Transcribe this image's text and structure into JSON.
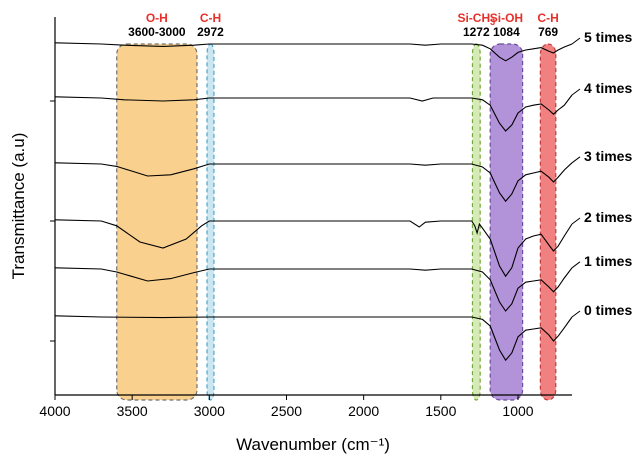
{
  "chart_data": {
    "type": "line",
    "title": "",
    "xlabel": "Wavenumber (cm⁻¹)",
    "ylabel": "Transmittance (a.u)",
    "xlim": [
      4000,
      650
    ],
    "x_reversed": true,
    "x_ticks": [
      4000,
      3500,
      3000,
      2500,
      2000,
      1500,
      1000
    ],
    "x_tick_labels": [
      "4000",
      "3500",
      "3000",
      "2500",
      "2000",
      "1500",
      "1000"
    ],
    "y_ticks_unlabeled": true,
    "bands": [
      {
        "name": "O-H",
        "position": "3600-3000",
        "from": 3600,
        "to": 3080,
        "color": "#f8c87a",
        "border": "#707070"
      },
      {
        "name": "C-H",
        "position": "2972",
        "from": 3015,
        "to": 2970,
        "color": "#bfe2ee",
        "border": "#4aa7c8"
      },
      {
        "name": "Si-CH3",
        "name_main": "Si-CH",
        "name_sub": "3",
        "position": "1272",
        "from": 1295,
        "to": 1245,
        "color": "#cfe6a9",
        "border": "#74a83d"
      },
      {
        "name": "Si-OH",
        "position": "1084",
        "from": 1180,
        "to": 970,
        "color": "#a57fd1",
        "border": "#6a4d9b"
      },
      {
        "name": "C-H",
        "position": "769",
        "from": 855,
        "to": 755,
        "color": "#ef6b6b",
        "border": "#c03a3a"
      }
    ],
    "series": [
      {
        "name": "5 times",
        "offset": 4.95,
        "points": [
          [
            4000,
            0.02
          ],
          [
            3700,
            0
          ],
          [
            3550,
            -0.02
          ],
          [
            3300,
            -0.04
          ],
          [
            3100,
            -0.02
          ],
          [
            3000,
            0
          ],
          [
            2500,
            0
          ],
          [
            2000,
            0
          ],
          [
            1700,
            0
          ],
          [
            1600,
            -0.02
          ],
          [
            1500,
            0
          ],
          [
            1300,
            0
          ],
          [
            1230,
            -0.02
          ],
          [
            1180,
            -0.08
          ],
          [
            1120,
            -0.22
          ],
          [
            1080,
            -0.28
          ],
          [
            1040,
            -0.22
          ],
          [
            1000,
            -0.14
          ],
          [
            950,
            -0.1
          ],
          [
            900,
            -0.08
          ],
          [
            850,
            -0.06
          ],
          [
            800,
            -0.12
          ],
          [
            770,
            -0.15
          ],
          [
            740,
            -0.1
          ],
          [
            700,
            -0.05
          ],
          [
            650,
            0.0
          ]
        ]
      },
      {
        "name": "4 times",
        "offset": 4.05,
        "points": [
          [
            4000,
            0.02
          ],
          [
            3700,
            0
          ],
          [
            3550,
            -0.03
          ],
          [
            3300,
            -0.05
          ],
          [
            3100,
            -0.03
          ],
          [
            3000,
            0
          ],
          [
            2500,
            0
          ],
          [
            2000,
            0
          ],
          [
            1700,
            0
          ],
          [
            1620,
            -0.05
          ],
          [
            1550,
            0
          ],
          [
            1300,
            0
          ],
          [
            1230,
            -0.03
          ],
          [
            1180,
            -0.12
          ],
          [
            1120,
            -0.42
          ],
          [
            1080,
            -0.55
          ],
          [
            1040,
            -0.45
          ],
          [
            1000,
            -0.25
          ],
          [
            950,
            -0.15
          ],
          [
            900,
            -0.12
          ],
          [
            850,
            -0.1
          ],
          [
            800,
            -0.2
          ],
          [
            770,
            -0.27
          ],
          [
            740,
            -0.2
          ],
          [
            700,
            -0.12
          ],
          [
            650,
            0.05
          ]
        ]
      },
      {
        "name": "3 times",
        "offset": 2.95,
        "points": [
          [
            4000,
            0.02
          ],
          [
            3700,
            0
          ],
          [
            3600,
            -0.04
          ],
          [
            3400,
            -0.2
          ],
          [
            3250,
            -0.18
          ],
          [
            3100,
            -0.08
          ],
          [
            3000,
            0
          ],
          [
            2500,
            0
          ],
          [
            2000,
            0
          ],
          [
            1700,
            0
          ],
          [
            1600,
            -0.02
          ],
          [
            1500,
            0
          ],
          [
            1300,
            0
          ],
          [
            1230,
            -0.05
          ],
          [
            1180,
            -0.15
          ],
          [
            1120,
            -0.48
          ],
          [
            1080,
            -0.62
          ],
          [
            1040,
            -0.5
          ],
          [
            1000,
            -0.28
          ],
          [
            950,
            -0.18
          ],
          [
            900,
            -0.15
          ],
          [
            850,
            -0.12
          ],
          [
            800,
            -0.22
          ],
          [
            770,
            -0.3
          ],
          [
            740,
            -0.22
          ],
          [
            700,
            -0.1
          ],
          [
            650,
            0.02
          ]
        ]
      },
      {
        "name": "2 times",
        "offset": 2.0,
        "points": [
          [
            4000,
            0.02
          ],
          [
            3700,
            0
          ],
          [
            3600,
            -0.08
          ],
          [
            3450,
            -0.35
          ],
          [
            3300,
            -0.45
          ],
          [
            3150,
            -0.3
          ],
          [
            3050,
            -0.08
          ],
          [
            3000,
            0
          ],
          [
            2500,
            0
          ],
          [
            2000,
            0
          ],
          [
            1700,
            0
          ],
          [
            1640,
            -0.1
          ],
          [
            1600,
            -0.02
          ],
          [
            1500,
            0
          ],
          [
            1300,
            0
          ],
          [
            1280,
            -0.08
          ],
          [
            1265,
            -0.2
          ],
          [
            1250,
            -0.05
          ],
          [
            1230,
            -0.12
          ],
          [
            1180,
            -0.3
          ],
          [
            1120,
            -0.75
          ],
          [
            1080,
            -0.92
          ],
          [
            1040,
            -0.78
          ],
          [
            1000,
            -0.45
          ],
          [
            950,
            -0.3
          ],
          [
            900,
            -0.25
          ],
          [
            850,
            -0.22
          ],
          [
            800,
            -0.4
          ],
          [
            770,
            -0.5
          ],
          [
            740,
            -0.42
          ],
          [
            700,
            -0.25
          ],
          [
            650,
            -0.05
          ]
        ]
      },
      {
        "name": "1 times",
        "offset": 1.2,
        "points": [
          [
            4000,
            0.02
          ],
          [
            3700,
            0
          ],
          [
            3600,
            -0.05
          ],
          [
            3400,
            -0.2
          ],
          [
            3250,
            -0.16
          ],
          [
            3100,
            -0.06
          ],
          [
            3000,
            0
          ],
          [
            2500,
            0
          ],
          [
            2000,
            0
          ],
          [
            1700,
            0
          ],
          [
            1600,
            -0.02
          ],
          [
            1500,
            0
          ],
          [
            1300,
            0
          ],
          [
            1230,
            -0.05
          ],
          [
            1180,
            -0.18
          ],
          [
            1120,
            -0.55
          ],
          [
            1080,
            -0.7
          ],
          [
            1040,
            -0.58
          ],
          [
            1000,
            -0.32
          ],
          [
            950,
            -0.22
          ],
          [
            900,
            -0.2
          ],
          [
            850,
            -0.18
          ],
          [
            800,
            -0.3
          ],
          [
            770,
            -0.38
          ],
          [
            740,
            -0.3
          ],
          [
            700,
            -0.15
          ],
          [
            650,
            0.02
          ]
        ]
      },
      {
        "name": "0 times",
        "offset": 0.4,
        "points": [
          [
            4000,
            0.02
          ],
          [
            3700,
            0
          ],
          [
            3300,
            -0.01
          ],
          [
            3000,
            0
          ],
          [
            2500,
            0
          ],
          [
            2000,
            0
          ],
          [
            1700,
            0
          ],
          [
            1500,
            0
          ],
          [
            1300,
            0
          ],
          [
            1230,
            -0.04
          ],
          [
            1180,
            -0.15
          ],
          [
            1120,
            -0.55
          ],
          [
            1080,
            -0.72
          ],
          [
            1040,
            -0.6
          ],
          [
            1000,
            -0.33
          ],
          [
            950,
            -0.22
          ],
          [
            900,
            -0.2
          ],
          [
            850,
            -0.18
          ],
          [
            800,
            -0.3
          ],
          [
            770,
            -0.4
          ],
          [
            740,
            -0.32
          ],
          [
            700,
            -0.18
          ],
          [
            650,
            0.0
          ]
        ]
      }
    ],
    "series_color": "#000000",
    "y_domain": [
      -0.9,
      5.4
    ]
  }
}
